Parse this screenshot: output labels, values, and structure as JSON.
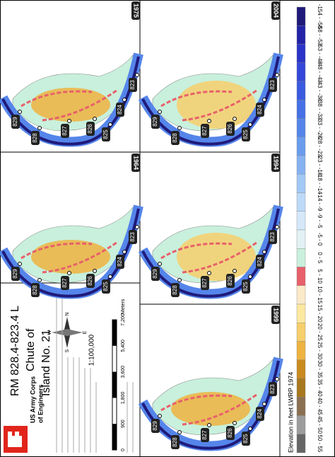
{
  "title_block": {
    "agency": [
      "US Army Corps",
      "of Engineers"
    ],
    "title": [
      "RM 828.4-823.4 L",
      "Chute of",
      "Island No. 21"
    ],
    "scale": "1:100,000",
    "scale_bar": {
      "labels": [
        "0",
        "900",
        "1,800",
        "3,600",
        "5,400",
        "7,200"
      ],
      "unit": "Meters"
    },
    "north_arrow": [
      "N",
      "E",
      "S",
      "W"
    ]
  },
  "panels": [
    {
      "year": "1975",
      "river_miles": [
        "829",
        "828",
        "827",
        "826",
        "825",
        "824",
        "823"
      ]
    },
    {
      "year": "2004",
      "river_miles": [
        "829",
        "828",
        "827",
        "826",
        "825",
        "824",
        "823"
      ]
    },
    {
      "year": "1964",
      "river_miles": [
        "829",
        "828",
        "827",
        "826",
        "825",
        "824",
        "823"
      ]
    },
    {
      "year": "1994",
      "river_miles": [
        "829",
        "828",
        "827",
        "826",
        "825",
        "824",
        "823"
      ]
    },
    {
      "year": "1999",
      "river_miles": [
        "829",
        "828",
        "827",
        "826",
        "825",
        "824",
        "823"
      ]
    }
  ],
  "legend": {
    "title": "Elevation in feet LWRP 1974",
    "classes": [
      {
        "label": "-154 - -58",
        "color": "#1f1a7a"
      },
      {
        "label": "-58 - -53",
        "color": "#2323a8"
      },
      {
        "label": "-53 - -48",
        "color": "#2a35c8"
      },
      {
        "label": "-48 - -43",
        "color": "#3348d8"
      },
      {
        "label": "-43 - -38",
        "color": "#3a5ae0"
      },
      {
        "label": "-38 - -33",
        "color": "#4670e6"
      },
      {
        "label": "-33 - -28",
        "color": "#5585ea"
      },
      {
        "label": "-28 - -23",
        "color": "#6a9cee"
      },
      {
        "label": "-23 - -18",
        "color": "#86b2f2"
      },
      {
        "label": "-18 - -14",
        "color": "#a2c8f6"
      },
      {
        "label": "-14 - -9",
        "color": "#bcdaf8"
      },
      {
        "label": "-9 - -5",
        "color": "#d4e8fa"
      },
      {
        "label": "-5 - 0",
        "color": "#e2f2f4"
      },
      {
        "label": "0 - 5",
        "color": "#c8f0dc"
      },
      {
        "label": "5 - 10",
        "color": "#e8606a"
      },
      {
        "label": "10 - 15",
        "color": "#fbe9c8"
      },
      {
        "label": "15 - 20",
        "color": "#fde8a0"
      },
      {
        "label": "20 - 25",
        "color": "#f7cf6c"
      },
      {
        "label": "25 - 30",
        "color": "#eeb340"
      },
      {
        "label": "30 - 35",
        "color": "#c98a1e"
      },
      {
        "label": "35 - 40",
        "color": "#a8781e"
      },
      {
        "label": "40 - 45",
        "color": "#8a7050"
      },
      {
        "label": "45 - 50",
        "color": "#9c9c9c"
      },
      {
        "label": "50 - 55",
        "color": "#666666"
      }
    ]
  }
}
